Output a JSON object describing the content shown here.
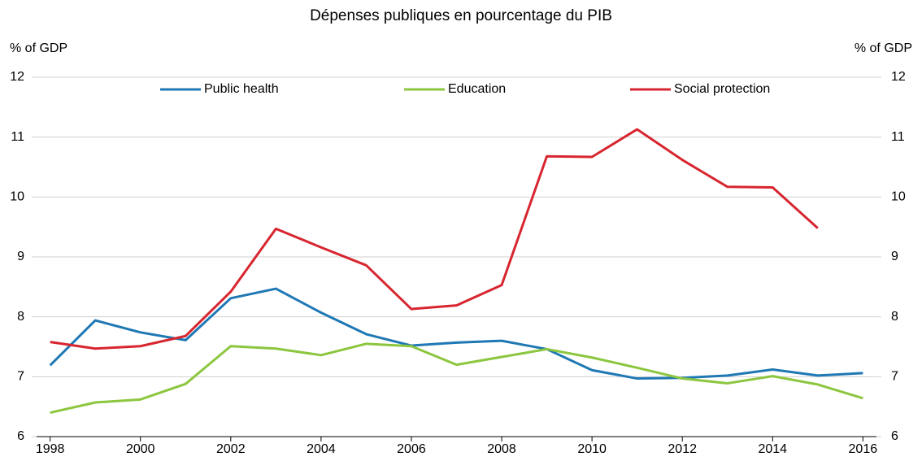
{
  "chart_data": {
    "type": "line",
    "title": "Dépenses publiques en pourcentage du PIB",
    "ylabel": "% of GDP",
    "y2label": "% of GDP",
    "x": [
      1998,
      1999,
      2000,
      2001,
      2002,
      2003,
      2004,
      2005,
      2006,
      2007,
      2008,
      2009,
      2010,
      2011,
      2012,
      2013,
      2014,
      2015,
      2016
    ],
    "xlim": [
      1997.7,
      2016.3
    ],
    "xticks": [
      1998,
      2000,
      2002,
      2004,
      2006,
      2008,
      2010,
      2012,
      2014,
      2016
    ],
    "ylim": [
      6,
      12
    ],
    "yticks": [
      6,
      7,
      8,
      9,
      10,
      11,
      12
    ],
    "y2lim": [
      6,
      12
    ],
    "y2ticks": [
      6,
      7,
      8,
      9,
      10,
      11,
      12
    ],
    "grid": true,
    "legend": "top",
    "series": [
      {
        "name": "Public health",
        "color": "#1f78b4",
        "values": [
          7.19,
          7.94,
          7.74,
          7.61,
          8.31,
          8.47,
          8.07,
          7.71,
          7.52,
          7.57,
          7.6,
          7.46,
          7.11,
          6.97,
          6.98,
          7.02,
          7.12,
          7.02,
          7.06
        ]
      },
      {
        "name": "Education",
        "color": "#8cc63f",
        "values": [
          6.4,
          6.57,
          6.62,
          6.88,
          7.51,
          7.47,
          7.36,
          7.55,
          7.51,
          7.2,
          7.33,
          7.46,
          7.32,
          7.15,
          6.97,
          6.89,
          7.01,
          6.87,
          6.64
        ]
      },
      {
        "name": "Social protection",
        "color": "#d7262f",
        "values": [
          7.58,
          7.47,
          7.51,
          7.68,
          8.42,
          9.47,
          9.16,
          8.86,
          8.13,
          8.19,
          8.53,
          10.68,
          10.67,
          11.13,
          10.62,
          10.17,
          10.16,
          9.48,
          null
        ]
      }
    ]
  }
}
